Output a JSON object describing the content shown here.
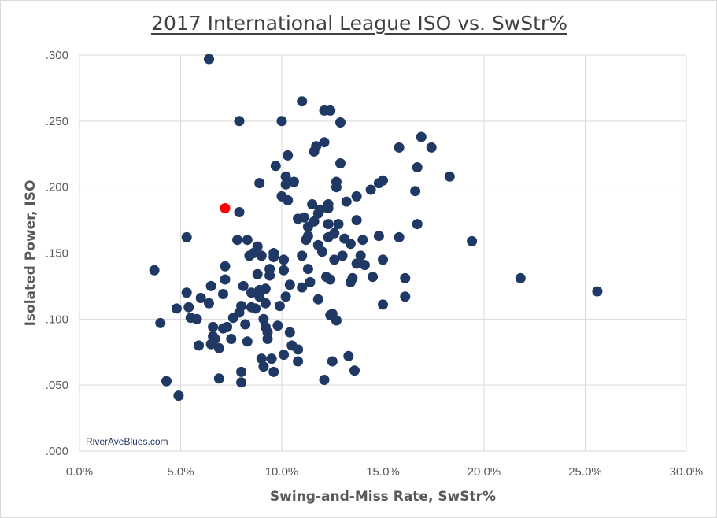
{
  "chart_data": {
    "type": "scatter",
    "title": "2017 International League ISO vs. SwStr%",
    "xlabel": "Swing-and-Miss Rate, SwStr%",
    "ylabel": "Isolated Power, ISO",
    "xlim": [
      0,
      30
    ],
    "ylim": [
      0,
      0.3
    ],
    "xticks": [
      "0.0%",
      "5.0%",
      "10.0%",
      "15.0%",
      "20.0%",
      "25.0%",
      "30.0%"
    ],
    "yticks": [
      ".000",
      ".050",
      ".100",
      ".150",
      ".200",
      ".250",
      ".300"
    ],
    "grid": "vertical and horizontal major gridlines",
    "watermark": "RiverAveBlues.com",
    "colors": {
      "points": "#1f3864",
      "highlight": "#ff0000",
      "grid": "#d9d9d9"
    },
    "series": [
      {
        "points": [
          [
            6.4,
            0.297
          ],
          [
            3.7,
            0.137
          ],
          [
            4.0,
            0.097
          ],
          [
            4.3,
            0.053
          ],
          [
            4.9,
            0.042
          ],
          [
            4.8,
            0.108
          ],
          [
            5.3,
            0.162
          ],
          [
            5.3,
            0.12
          ],
          [
            5.4,
            0.109
          ],
          [
            5.5,
            0.101
          ],
          [
            5.8,
            0.1
          ],
          [
            5.9,
            0.08
          ],
          [
            6.0,
            0.116
          ],
          [
            6.4,
            0.112
          ],
          [
            6.5,
            0.125
          ],
          [
            6.6,
            0.094
          ],
          [
            6.6,
            0.087
          ],
          [
            6.5,
            0.081
          ],
          [
            6.7,
            0.085
          ],
          [
            6.9,
            0.078
          ],
          [
            6.9,
            0.055
          ],
          [
            7.1,
            0.119
          ],
          [
            7.2,
            0.13
          ],
          [
            7.2,
            0.14
          ],
          [
            7.3,
            0.094
          ],
          [
            7.1,
            0.093
          ],
          [
            7.5,
            0.085
          ],
          [
            7.6,
            0.101
          ],
          [
            7.8,
            0.16
          ],
          [
            7.9,
            0.25
          ],
          [
            7.9,
            0.181
          ],
          [
            7.9,
            0.105
          ],
          [
            8.0,
            0.11
          ],
          [
            8.0,
            0.06
          ],
          [
            8.0,
            0.052
          ],
          [
            8.1,
            0.125
          ],
          [
            8.2,
            0.096
          ],
          [
            8.3,
            0.16
          ],
          [
            8.3,
            0.083
          ],
          [
            8.4,
            0.148
          ],
          [
            8.5,
            0.109
          ],
          [
            8.5,
            0.12
          ],
          [
            8.6,
            0.15
          ],
          [
            8.7,
            0.108
          ],
          [
            8.8,
            0.155
          ],
          [
            8.8,
            0.134
          ],
          [
            8.9,
            0.203
          ],
          [
            8.9,
            0.117
          ],
          [
            8.9,
            0.122
          ],
          [
            9.0,
            0.07
          ],
          [
            9.0,
            0.148
          ],
          [
            9.1,
            0.1
          ],
          [
            9.1,
            0.064
          ],
          [
            9.2,
            0.123
          ],
          [
            9.2,
            0.112
          ],
          [
            9.2,
            0.094
          ],
          [
            9.3,
            0.09
          ],
          [
            9.3,
            0.085
          ],
          [
            9.4,
            0.138
          ],
          [
            9.4,
            0.133
          ],
          [
            9.5,
            0.07
          ],
          [
            9.6,
            0.15
          ],
          [
            9.6,
            0.147
          ],
          [
            9.6,
            0.06
          ],
          [
            9.7,
            0.216
          ],
          [
            9.8,
            0.095
          ],
          [
            9.9,
            0.11
          ],
          [
            10.0,
            0.25
          ],
          [
            10.0,
            0.193
          ],
          [
            10.1,
            0.145
          ],
          [
            10.1,
            0.137
          ],
          [
            10.1,
            0.073
          ],
          [
            10.2,
            0.208
          ],
          [
            10.2,
            0.202
          ],
          [
            10.2,
            0.117
          ],
          [
            10.3,
            0.224
          ],
          [
            10.3,
            0.19
          ],
          [
            10.4,
            0.126
          ],
          [
            10.4,
            0.09
          ],
          [
            10.5,
            0.08
          ],
          [
            10.6,
            0.204
          ],
          [
            10.8,
            0.176
          ],
          [
            10.8,
            0.077
          ],
          [
            10.8,
            0.068
          ],
          [
            11.0,
            0.265
          ],
          [
            11.0,
            0.148
          ],
          [
            11.0,
            0.124
          ],
          [
            11.1,
            0.177
          ],
          [
            11.2,
            0.16
          ],
          [
            11.3,
            0.17
          ],
          [
            11.3,
            0.163
          ],
          [
            11.3,
            0.138
          ],
          [
            11.4,
            0.128
          ],
          [
            11.5,
            0.187
          ],
          [
            11.6,
            0.227
          ],
          [
            11.6,
            0.174
          ],
          [
            11.7,
            0.231
          ],
          [
            11.8,
            0.18
          ],
          [
            11.8,
            0.156
          ],
          [
            11.8,
            0.115
          ],
          [
            11.9,
            0.183
          ],
          [
            12.0,
            0.151
          ],
          [
            12.1,
            0.258
          ],
          [
            12.1,
            0.234
          ],
          [
            12.1,
            0.054
          ],
          [
            12.2,
            0.132
          ],
          [
            12.3,
            0.187
          ],
          [
            12.3,
            0.184
          ],
          [
            12.3,
            0.172
          ],
          [
            12.3,
            0.162
          ],
          [
            12.4,
            0.258
          ],
          [
            12.4,
            0.13
          ],
          [
            12.4,
            0.103
          ],
          [
            12.5,
            0.104
          ],
          [
            12.5,
            0.068
          ],
          [
            12.6,
            0.165
          ],
          [
            12.6,
            0.145
          ],
          [
            12.7,
            0.204
          ],
          [
            12.7,
            0.2
          ],
          [
            12.7,
            0.099
          ],
          [
            12.8,
            0.172
          ],
          [
            12.9,
            0.249
          ],
          [
            12.9,
            0.218
          ],
          [
            13.0,
            0.148
          ],
          [
            13.1,
            0.161
          ],
          [
            13.2,
            0.189
          ],
          [
            13.3,
            0.072
          ],
          [
            13.4,
            0.157
          ],
          [
            13.4,
            0.128
          ],
          [
            13.5,
            0.131
          ],
          [
            13.6,
            0.061
          ],
          [
            13.7,
            0.193
          ],
          [
            13.7,
            0.175
          ],
          [
            13.7,
            0.142
          ],
          [
            13.9,
            0.148
          ],
          [
            14.0,
            0.16
          ],
          [
            14.1,
            0.141
          ],
          [
            14.4,
            0.198
          ],
          [
            14.5,
            0.132
          ],
          [
            14.8,
            0.163
          ],
          [
            14.8,
            0.203
          ],
          [
            15.0,
            0.205
          ],
          [
            15.0,
            0.145
          ],
          [
            15.0,
            0.111
          ],
          [
            15.8,
            0.23
          ],
          [
            15.8,
            0.162
          ],
          [
            16.1,
            0.131
          ],
          [
            16.1,
            0.117
          ],
          [
            16.6,
            0.197
          ],
          [
            16.7,
            0.215
          ],
          [
            16.7,
            0.172
          ],
          [
            16.9,
            0.238
          ],
          [
            17.4,
            0.23
          ],
          [
            18.3,
            0.208
          ],
          [
            19.4,
            0.159
          ],
          [
            21.8,
            0.131
          ],
          [
            25.6,
            0.121
          ]
        ]
      },
      {
        "highlight": true,
        "points": [
          [
            7.2,
            0.184
          ]
        ]
      }
    ]
  }
}
